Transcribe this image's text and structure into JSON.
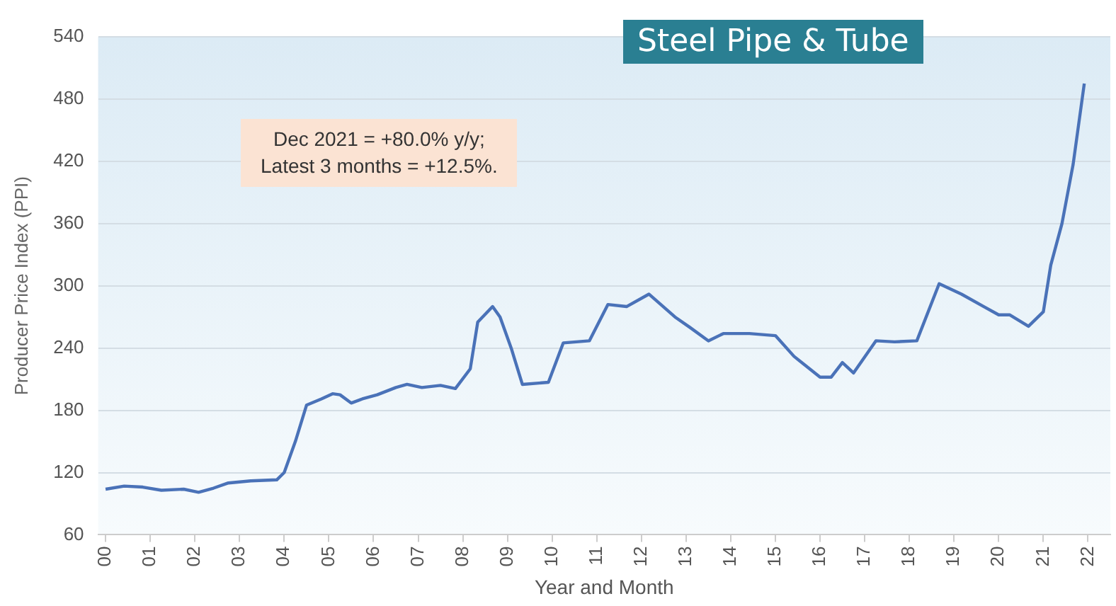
{
  "chart_data": {
    "type": "line",
    "title": "Steel Pipe & Tube",
    "xlabel": "Year and Month",
    "ylabel": "Producer Price Index (PPI)",
    "annotations": [
      "Dec 2021 = +80.0% y/y;\nLatest 3 months = +12.5%."
    ],
    "x": [
      "2000-01",
      "2000-06",
      "2000-11",
      "2001-04",
      "2001-10",
      "2002-02",
      "2002-06",
      "2002-10",
      "2003-04",
      "2003-11",
      "2004-01",
      "2004-04",
      "2004-07",
      "2004-11",
      "2005-02",
      "2005-04",
      "2005-07",
      "2005-10",
      "2006-02",
      "2006-07",
      "2006-10",
      "2007-02",
      "2007-07",
      "2007-11",
      "2008-03",
      "2008-05",
      "2008-09",
      "2008-11",
      "2009-02",
      "2009-05",
      "2009-12",
      "2010-04",
      "2010-11",
      "2011-04",
      "2011-09",
      "2012-03",
      "2012-10",
      "2013-02",
      "2013-07",
      "2013-11",
      "2014-06",
      "2015-01",
      "2015-06",
      "2016-01",
      "2016-04",
      "2016-07",
      "2016-10",
      "2017-04",
      "2017-09",
      "2018-03",
      "2018-09",
      "2019-03",
      "2019-09",
      "2020-01",
      "2020-04",
      "2020-09",
      "2021-01",
      "2021-03",
      "2021-06",
      "2021-09",
      "2021-12"
    ],
    "series": [
      {
        "color": "#4a72b8",
        "values": [
          104,
          107,
          106,
          103,
          104,
          101,
          105,
          110,
          112,
          113,
          120,
          150,
          185,
          191,
          196,
          195,
          187,
          191,
          195,
          202,
          205,
          202,
          204,
          201,
          220,
          265,
          280,
          270,
          240,
          205,
          207,
          245,
          247,
          282,
          280,
          292,
          270,
          260,
          247,
          254,
          254,
          252,
          232,
          212,
          212,
          226,
          216,
          247,
          246,
          247,
          302,
          292,
          280,
          272,
          272,
          261,
          275,
          320,
          360,
          417,
          495
        ]
      }
    ],
    "xlim": [
      "1999-11",
      "2022-07"
    ],
    "xticks": [
      {
        "value": "2000-01",
        "label": "00"
      },
      {
        "value": "2001-01",
        "label": "01"
      },
      {
        "value": "2002-01",
        "label": "02"
      },
      {
        "value": "2003-01",
        "label": "03"
      },
      {
        "value": "2004-01",
        "label": "04"
      },
      {
        "value": "2005-01",
        "label": "05"
      },
      {
        "value": "2006-01",
        "label": "06"
      },
      {
        "value": "2007-01",
        "label": "07"
      },
      {
        "value": "2008-01",
        "label": "08"
      },
      {
        "value": "2009-01",
        "label": "09"
      },
      {
        "value": "2010-01",
        "label": "10"
      },
      {
        "value": "2011-01",
        "label": "11"
      },
      {
        "value": "2012-01",
        "label": "12"
      },
      {
        "value": "2013-01",
        "label": "13"
      },
      {
        "value": "2014-01",
        "label": "14"
      },
      {
        "value": "2015-01",
        "label": "15"
      },
      {
        "value": "2016-01",
        "label": "16"
      },
      {
        "value": "2017-01",
        "label": "17"
      },
      {
        "value": "2018-01",
        "label": "18"
      },
      {
        "value": "2019-01",
        "label": "19"
      },
      {
        "value": "2020-01",
        "label": "20"
      },
      {
        "value": "2021-01",
        "label": "21"
      },
      {
        "value": "2022-01",
        "label": "22"
      }
    ],
    "ylim": [
      60,
      540
    ],
    "yticks": [
      60,
      120,
      180,
      240,
      300,
      360,
      420,
      480,
      540
    ],
    "grid": "y",
    "legend": false,
    "marker": "none",
    "line_style": "solid"
  }
}
